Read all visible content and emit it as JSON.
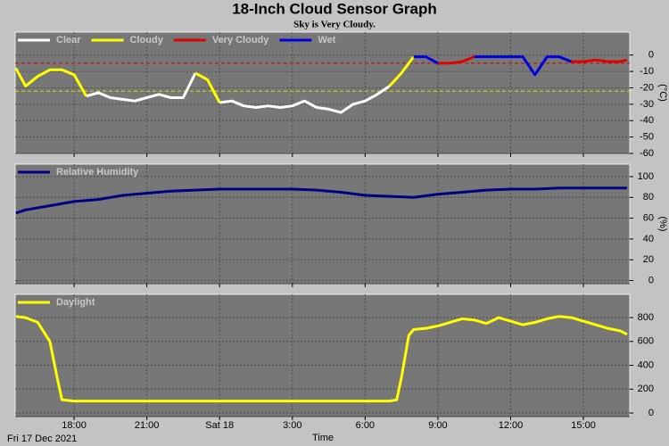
{
  "chart_data": [
    {
      "type": "line",
      "title": "18-Inch Cloud Sensor Graph",
      "subtitle": "Sky is Very Cloudy.",
      "y_label": "(°C)",
      "xlim": [
        15.57,
        40.91
      ],
      "ylim": [
        -60,
        14
      ],
      "yticks": [
        0,
        -10,
        -20,
        -30,
        -40,
        -50,
        -60
      ],
      "grid": true,
      "reference_lines": [
        {
          "value": -5,
          "color": "#d00000"
        },
        {
          "value": -22,
          "color": "#e0e000"
        }
      ],
      "x": [
        15.6,
        16,
        16.5,
        17,
        17.5,
        18,
        18.5,
        19,
        19.5,
        20,
        20.5,
        21,
        21.5,
        22,
        22.5,
        23,
        23.5,
        24,
        24.5,
        25,
        25.5,
        26,
        26.5,
        27,
        27.5,
        28,
        28.5,
        29,
        29.5,
        30,
        30.5,
        31,
        31.5,
        32,
        32.5,
        33,
        33.5,
        34,
        34.5,
        35,
        35.5,
        36,
        36.5,
        37,
        37.5,
        38,
        38.5,
        39,
        39.5,
        40,
        40.5,
        40.8
      ],
      "series": [
        {
          "name": "Clear",
          "color": "#ffffff",
          "values": [
            null,
            null,
            null,
            null,
            null,
            null,
            -25,
            -23,
            -26,
            -27,
            -28,
            -26,
            -24,
            -26,
            -26,
            -11,
            null,
            -29,
            -28,
            -31,
            -32,
            -31,
            -32,
            -31,
            -28,
            -32,
            -33,
            -35,
            -30,
            -28,
            -24,
            -19,
            null,
            null,
            null,
            null,
            null,
            null,
            null,
            null,
            null,
            null,
            null,
            null,
            null,
            null,
            null,
            null,
            null,
            null,
            null,
            null
          ]
        },
        {
          "name": "Cloudy",
          "color": "#ffff00",
          "values": [
            -8,
            -19,
            -13,
            -9,
            -9,
            -12,
            -25,
            null,
            null,
            null,
            null,
            null,
            null,
            null,
            null,
            -11,
            -15,
            -29,
            null,
            null,
            null,
            null,
            null,
            null,
            null,
            null,
            null,
            null,
            null,
            null,
            null,
            -19,
            -11,
            -1,
            null,
            null,
            null,
            null,
            null,
            null,
            null,
            null,
            null,
            null,
            null,
            null,
            null,
            null,
            null,
            null,
            null,
            null
          ]
        },
        {
          "name": "Very Cloudy",
          "color": "#e00000",
          "values": [
            null,
            null,
            null,
            null,
            null,
            null,
            null,
            null,
            null,
            null,
            null,
            null,
            null,
            null,
            null,
            null,
            null,
            null,
            null,
            null,
            null,
            null,
            null,
            null,
            null,
            null,
            null,
            null,
            null,
            null,
            null,
            null,
            null,
            null,
            null,
            -5,
            -5,
            -4,
            -1,
            null,
            null,
            null,
            null,
            null,
            null,
            null,
            -4,
            -4,
            -3,
            -4,
            -4,
            -3
          ]
        },
        {
          "name": "Wet",
          "color": "#0000e0",
          "values": [
            null,
            null,
            null,
            null,
            null,
            null,
            null,
            null,
            null,
            null,
            null,
            null,
            null,
            null,
            null,
            null,
            null,
            null,
            null,
            null,
            null,
            null,
            null,
            null,
            null,
            null,
            null,
            null,
            null,
            null,
            null,
            null,
            null,
            -1,
            -1,
            -5,
            null,
            null,
            -1,
            -1,
            -1,
            -1,
            -1,
            -12,
            -1,
            -1,
            -4,
            null,
            null,
            null,
            null,
            null
          ]
        }
      ]
    },
    {
      "type": "line",
      "y_label": "(%)",
      "xlim": [
        15.57,
        40.91
      ],
      "ylim": [
        -3,
        112
      ],
      "yticks": [
        100,
        80,
        60,
        40,
        20,
        0
      ],
      "grid": true,
      "x": [
        15.6,
        16,
        17,
        18,
        19,
        20,
        21,
        22,
        23,
        24,
        25,
        26,
        27,
        28,
        29,
        30,
        31,
        32,
        33,
        34,
        35,
        36,
        37,
        38,
        39,
        40,
        40.8
      ],
      "series": [
        {
          "name": "Relative Humidity",
          "color": "#000080",
          "values": [
            65,
            68,
            72,
            76,
            78,
            82,
            84,
            86,
            87,
            88,
            88,
            88,
            88,
            87,
            85,
            82,
            81,
            80,
            83,
            85,
            87,
            88,
            88,
            89,
            89,
            89,
            89
          ]
        }
      ]
    },
    {
      "type": "line",
      "x_label": "Time",
      "x_start_label": "Fri 17 Dec 2021",
      "xlim": [
        15.57,
        40.91
      ],
      "ylim": [
        -30,
        995
      ],
      "yticks": [
        800,
        600,
        400,
        200,
        0
      ],
      "grid": true,
      "xticks": [
        {
          "value": 18,
          "label": "18:00"
        },
        {
          "value": 21,
          "label": "21:00"
        },
        {
          "value": 24,
          "label": "Sat 18"
        },
        {
          "value": 27,
          "label": "3:00"
        },
        {
          "value": 30,
          "label": "6:00"
        },
        {
          "value": 33,
          "label": "9:00"
        },
        {
          "value": 36,
          "label": "12:00"
        },
        {
          "value": 39,
          "label": "15:00"
        }
      ],
      "x": [
        15.6,
        16,
        16.5,
        17,
        17.3,
        17.5,
        18,
        20,
        22,
        24,
        26,
        28,
        30,
        31,
        31.3,
        31.5,
        31.8,
        32,
        32.5,
        33,
        33.5,
        34,
        34.5,
        35,
        35.5,
        36,
        36.5,
        37,
        37.5,
        38,
        38.5,
        39,
        39.5,
        40,
        40.5,
        40.8
      ],
      "series": [
        {
          "name": "Daylight",
          "color": "#ffff00",
          "values": [
            810,
            800,
            760,
            600,
            300,
            110,
            100,
            100,
            100,
            100,
            100,
            100,
            100,
            100,
            110,
            300,
            650,
            700,
            710,
            730,
            760,
            790,
            780,
            750,
            800,
            770,
            740,
            760,
            790,
            810,
            800,
            770,
            740,
            710,
            690,
            660
          ]
        }
      ]
    }
  ]
}
